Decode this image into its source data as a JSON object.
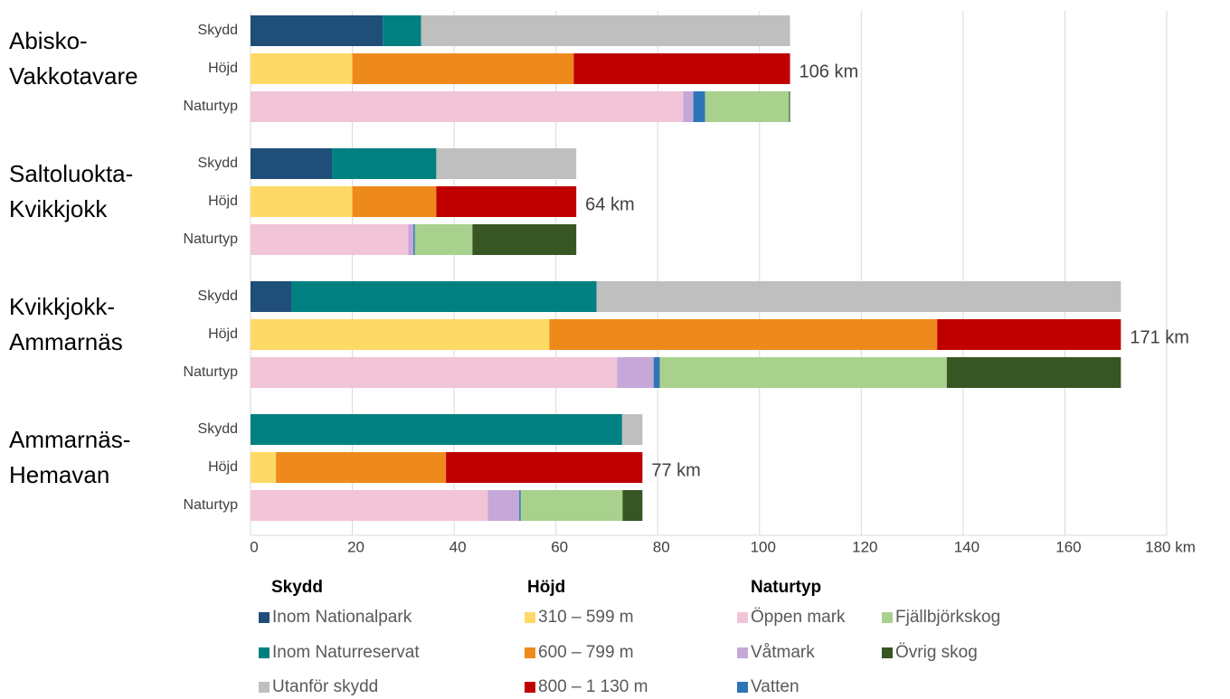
{
  "chart_data": {
    "type": "grouped-stacked-bar",
    "groups": [
      [
        "Abisko-",
        "Vakkotavare"
      ],
      [
        "Saltoluokta-",
        "Kvikkjokk"
      ],
      [
        "Kvikkjokk-",
        "Ammarnäs"
      ],
      [
        "Ammarnäs-",
        "Hemavan"
      ]
    ],
    "totals": [
      106,
      64,
      171,
      77
    ],
    "total_labels": [
      "106 km",
      "64 km",
      "171 km",
      "77 km"
    ],
    "rows": [
      {
        "name": "Skydd",
        "series": [
          {
            "name": "Inom Nationalpark",
            "color": "#1f4e79",
            "values": [
              26,
              16,
              8,
              0
            ]
          },
          {
            "name": "Inom Naturreservat",
            "color": "#008080",
            "values": [
              7.5,
              20.5,
              60,
              73
            ]
          },
          {
            "name": "Utanför skydd",
            "color": "#bfbfbf",
            "values": [
              72.5,
              27.5,
              103,
              4
            ]
          }
        ]
      },
      {
        "name": "Höjd",
        "series": [
          {
            "name": "310 – 599 m",
            "color": "#ffd966",
            "values": [
              20,
              20,
              58.7,
              5
            ]
          },
          {
            "name": "600 – 799 m",
            "color": "#ee8a1c",
            "values": [
              43.5,
              16.5,
              76.2,
              33.4
            ]
          },
          {
            "name": "800 – 1 130 m",
            "color": "#c00000",
            "values": [
              42.5,
              27.5,
              36.1,
              38.6
            ]
          }
        ]
      },
      {
        "name": "Naturtyp",
        "series": [
          {
            "name": "Öppen mark",
            "color": "#f2c4d8",
            "values": [
              85,
              31,
              72,
              46.6
            ]
          },
          {
            "name": "Våtmark",
            "color": "#c5a8d8",
            "values": [
              2,
              1,
              7.2,
              6.2
            ]
          },
          {
            "name": "Vatten",
            "color": "#2e75b6",
            "values": [
              2.3,
              0.3,
              1.2,
              0.3
            ]
          },
          {
            "name": "Fjällbjörkskog",
            "color": "#a9d18e",
            "values": [
              16.5,
              11.3,
              56.4,
              20
            ]
          },
          {
            "name": "Övrig skog",
            "color": "#375623",
            "values": [
              0.2,
              20.4,
              34.2,
              3.9
            ]
          }
        ]
      }
    ],
    "xlim": [
      0,
      180
    ],
    "xticks": [
      0,
      20,
      40,
      60,
      80,
      100,
      120,
      140,
      160,
      {
        "value": 180,
        "label": "180 km"
      }
    ],
    "grid": true
  }
}
